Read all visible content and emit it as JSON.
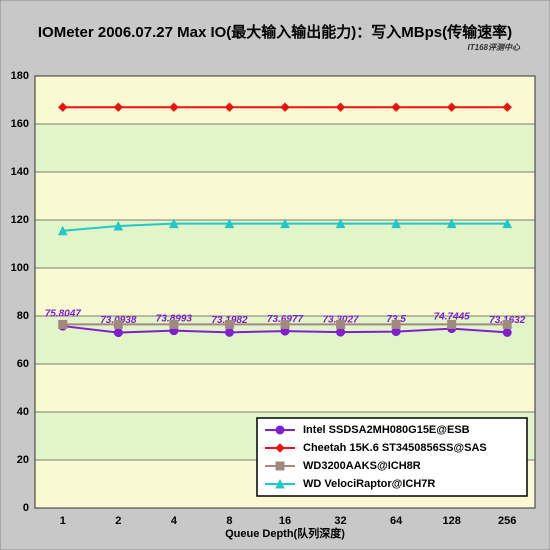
{
  "chart_data": {
    "type": "line",
    "title": "IOMeter 2006.07.27 Max IO(最大输入输出能力)：写入MBps(传输速率)",
    "source": "IT168评测中心",
    "x_label": "Queue Depth(队列深度)",
    "categories": [
      "1",
      "2",
      "4",
      "8",
      "16",
      "32",
      "64",
      "128",
      "256"
    ],
    "ylim": [
      0,
      180
    ],
    "yticks": [
      0,
      20,
      40,
      60,
      80,
      100,
      120,
      140,
      160,
      180
    ],
    "grid": true,
    "legend": "lower right",
    "series": [
      {
        "name": "Intel SSDSA2MH080G15E@ESB",
        "color": "#7f1fd0",
        "marker": "circle",
        "show_labels": true,
        "values": [
          75.8047,
          73.0938,
          73.8993,
          73.1982,
          73.6977,
          73.3027,
          73.5,
          74.7445,
          73.1632
        ]
      },
      {
        "name": "Cheetah 15K.6 ST3450856SS@SAS",
        "color": "#ee1111",
        "marker": "diamond",
        "values": [
          167,
          167,
          167,
          167,
          167,
          167,
          167,
          167,
          167
        ]
      },
      {
        "name": "WD3200AAKS@ICH8R",
        "color": "#a08a80",
        "marker": "square",
        "values": [
          76.5,
          76.5,
          76.5,
          76.5,
          76.5,
          76.5,
          76.5,
          76.5,
          76.5
        ]
      },
      {
        "name": "WD VelociRaptor@ICH7R",
        "color": "#22c8c8",
        "marker": "triangle",
        "values": [
          115.5,
          117.5,
          118.5,
          118.5,
          118.5,
          118.5,
          118.5,
          118.5,
          118.5
        ]
      }
    ]
  }
}
